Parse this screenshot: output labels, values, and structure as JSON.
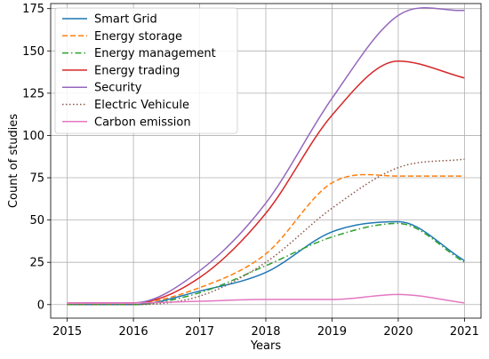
{
  "chart_data": {
    "type": "line",
    "title": "",
    "xlabel": "Years",
    "ylabel": "Count of studies",
    "xlim": [
      2014.75,
      2021.25
    ],
    "ylim": [
      -8,
      178
    ],
    "xticks": [
      2015,
      2016,
      2017,
      2018,
      2019,
      2020,
      2021
    ],
    "yticks": [
      0,
      25,
      50,
      75,
      100,
      125,
      150,
      175
    ],
    "grid": true,
    "legend_position": "top-left",
    "x": [
      2015,
      2016,
      2017,
      2018,
      2019,
      2020,
      2021
    ],
    "series": [
      {
        "name": "Smart Grid",
        "color": "#1f77b4",
        "dash": "solid",
        "values": [
          0,
          0,
          8,
          19,
          43,
          49,
          26
        ]
      },
      {
        "name": "Energy storage",
        "color": "#ff7f0e",
        "dash": "dashed",
        "values": [
          1,
          1,
          10,
          30,
          72,
          76,
          76
        ]
      },
      {
        "name": "Energy management",
        "color": "#2ca02c",
        "dash": "dashdot",
        "values": [
          0,
          0,
          7,
          23,
          40,
          48,
          25
        ]
      },
      {
        "name": "Energy trading",
        "color": "#d62728",
        "dash": "solid",
        "values": [
          1,
          1,
          16,
          54,
          112,
          144,
          134
        ]
      },
      {
        "name": "Security",
        "color": "#9467bd",
        "dash": "solid",
        "values": [
          1,
          1,
          20,
          60,
          122,
          171,
          174
        ]
      },
      {
        "name": "Electric Vehicule",
        "color": "#8c564b",
        "dash": "dotted",
        "values": [
          0,
          0,
          5,
          25,
          57,
          81,
          86
        ]
      },
      {
        "name": "Carbon emission",
        "color": "#e377c2",
        "dash": "solid",
        "values": [
          1,
          1,
          2,
          3,
          3,
          6,
          1
        ]
      }
    ]
  }
}
